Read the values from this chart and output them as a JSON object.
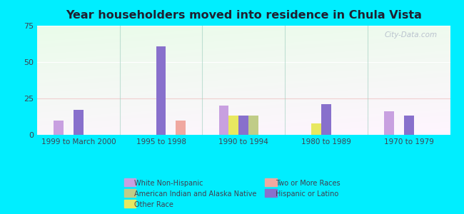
{
  "title": "Year householders moved into residence in Chula Vista",
  "categories": [
    "1999 to March 2000",
    "1995 to 1998",
    "1990 to 1994",
    "1980 to 1989",
    "1970 to 1979"
  ],
  "values": {
    "White Non-Hispanic": [
      10,
      0,
      20,
      0,
      16
    ],
    "Other Race": [
      0,
      0,
      13,
      8,
      0
    ],
    "Hispanic or Latino": [
      17,
      61,
      13,
      21,
      13
    ],
    "American Indian and Alaska Native": [
      0,
      0,
      13,
      0,
      0
    ],
    "Two or More Races": [
      0,
      10,
      0,
      0,
      0
    ]
  },
  "bar_order": [
    "White Non-Hispanic",
    "Other Race",
    "Hispanic or Latino",
    "American Indian and Alaska Native",
    "Two or More Races"
  ],
  "colors": {
    "White Non-Hispanic": "#c8a0e0",
    "Other Race": "#e8e860",
    "Hispanic or Latino": "#8870cc",
    "American Indian and Alaska Native": "#c0cc88",
    "Two or More Races": "#f0a8a0"
  },
  "legend_order": [
    "White Non-Hispanic",
    "American Indian and Alaska Native",
    "Other Race",
    "Two or More Races",
    "Hispanic or Latino"
  ],
  "ylim": [
    0,
    75
  ],
  "yticks": [
    0,
    25,
    50,
    75
  ],
  "bg_color": "#00eeff",
  "watermark": "City-Data.com"
}
